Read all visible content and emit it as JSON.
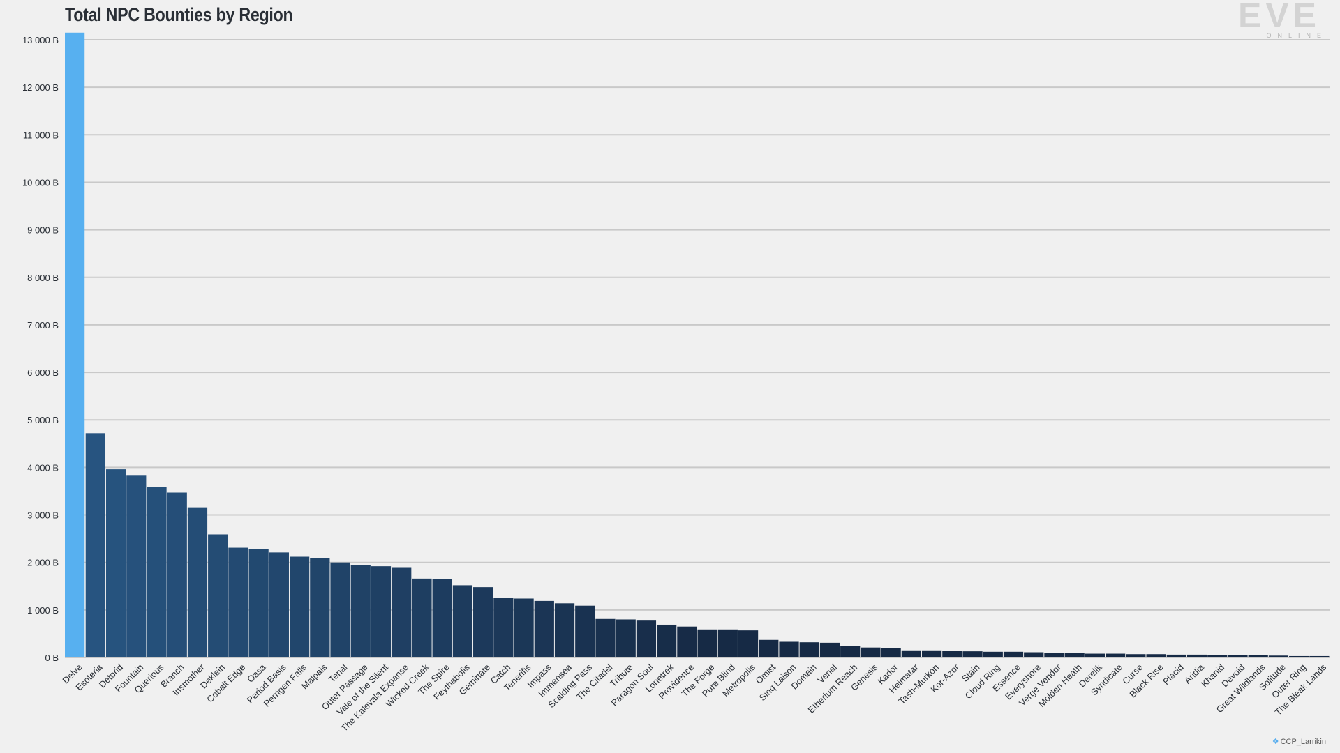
{
  "logo": {
    "main": "EVE",
    "sub": "ONLINE"
  },
  "credit": {
    "icon": "twitter-bird-icon",
    "handle": "CCP_Larrikin"
  },
  "colors": {
    "highlight": "#57b0f0",
    "bar_light": "#275480",
    "bar_dark": "#162a45",
    "grid": "#c9c9c9",
    "background": "#f0f0f0"
  },
  "chart_data": {
    "type": "bar",
    "title": "Total NPC Bounties by Region",
    "xlabel": "",
    "ylabel": "",
    "ylim": [
      0,
      13000
    ],
    "yticks": [
      0,
      1000,
      2000,
      3000,
      4000,
      5000,
      6000,
      7000,
      8000,
      9000,
      10000,
      11000,
      12000,
      13000
    ],
    "ytick_labels": [
      "0 B",
      "1 000 B",
      "2 000 B",
      "3 000 B",
      "4 000 B",
      "5 000 B",
      "6 000 B",
      "7 000 B",
      "8 000 B",
      "9 000 B",
      "10 000 B",
      "11 000 B",
      "12 000 B",
      "13 000 B"
    ],
    "grid": true,
    "categories": [
      "Delve",
      "Esoteria",
      "Detorid",
      "Fountain",
      "Querious",
      "Branch",
      "Insmother",
      "Deklein",
      "Cobalt Edge",
      "Oasa",
      "Period Basis",
      "Perrigen Falls",
      "Malpais",
      "Tenal",
      "Outer Passage",
      "Vale of the Silent",
      "The Kalevala Expanse",
      "Wicked Creek",
      "The Spire",
      "Feythabolis",
      "Geminate",
      "Catch",
      "Tenerifis",
      "Impass",
      "Immensea",
      "Scalding Pass",
      "The Citadel",
      "Tribute",
      "Paragon Soul",
      "Lonetrek",
      "Providence",
      "The Forge",
      "Pure Blind",
      "Metropolis",
      "Omist",
      "Sinq Laison",
      "Domain",
      "Venal",
      "Etherium Reach",
      "Genesis",
      "Kador",
      "Heimatar",
      "Tash-Murkon",
      "Kor-Azor",
      "Stain",
      "Cloud Ring",
      "Essence",
      "Everyshore",
      "Verge Vendor",
      "Molden Heath",
      "Derelik",
      "Syndicate",
      "Curse",
      "Black Rise",
      "Placid",
      "Aridia",
      "Khanid",
      "Devoid",
      "Great Wildlands",
      "Solitude",
      "Outer Ring",
      "The Bleak Lands"
    ],
    "values": [
      13150,
      4720,
      3960,
      3840,
      3590,
      3470,
      3160,
      2590,
      2310,
      2280,
      2210,
      2120,
      2090,
      2000,
      1950,
      1920,
      1900,
      1660,
      1650,
      1520,
      1480,
      1260,
      1240,
      1190,
      1140,
      1090,
      810,
      800,
      790,
      690,
      650,
      590,
      590,
      570,
      370,
      330,
      320,
      310,
      240,
      210,
      200,
      150,
      150,
      140,
      130,
      120,
      120,
      110,
      100,
      90,
      80,
      80,
      70,
      70,
      60,
      60,
      50,
      50,
      50,
      40,
      30,
      30
    ]
  }
}
